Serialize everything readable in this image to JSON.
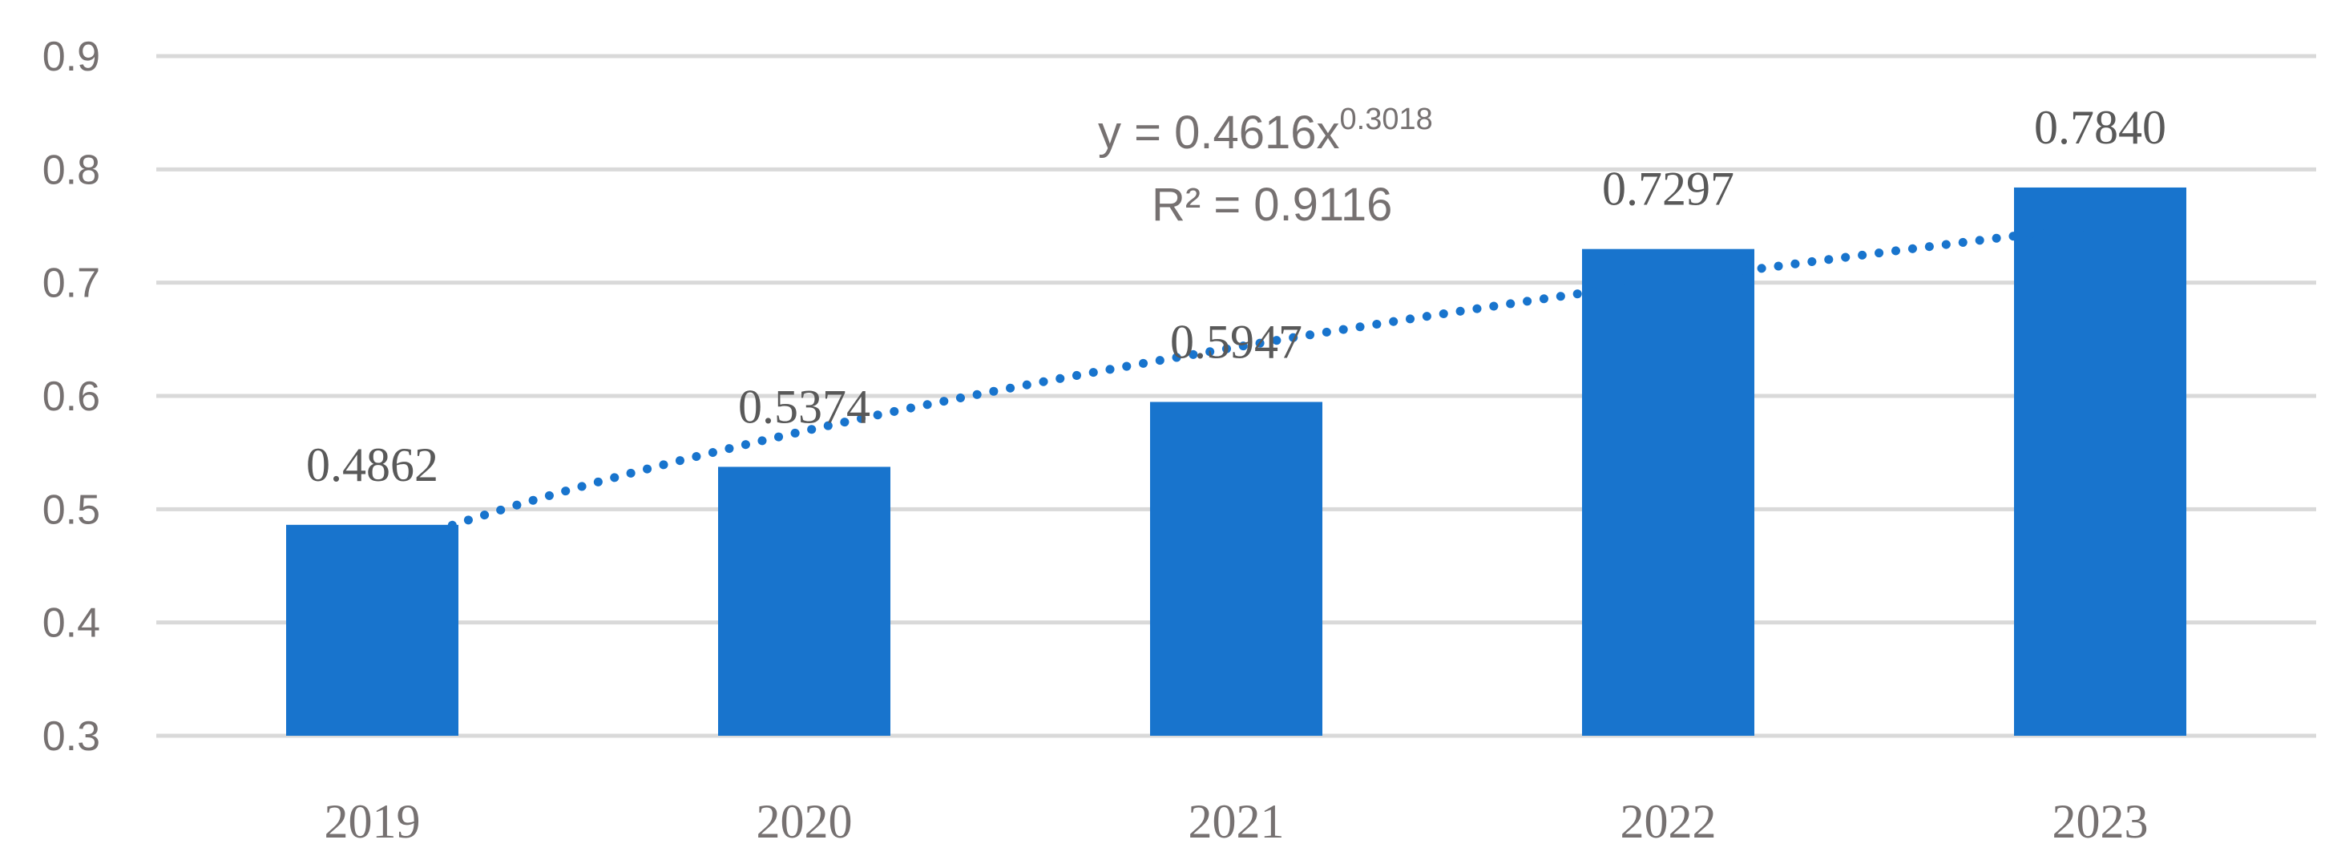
{
  "chart_data": {
    "type": "bar",
    "categories": [
      "2019",
      "2020",
      "2021",
      "2022",
      "2023"
    ],
    "values": [
      0.4862,
      0.5374,
      0.5947,
      0.7297,
      0.784
    ],
    "data_labels": [
      "0.4862",
      "0.5374",
      "0.5947",
      "0.7297",
      "0.7840"
    ],
    "ylim": [
      0.3,
      0.9
    ],
    "y_ticks": [
      "0.3",
      "0.4",
      "0.5",
      "0.6",
      "0.7",
      "0.8",
      "0.9"
    ],
    "grid": "horizontal",
    "bar_color": "#1874CD",
    "trendline": {
      "type": "power",
      "a": 0.4616,
      "b": 0.3018,
      "style": "dotted",
      "color": "#1874CD",
      "equation_prefix": "y = 0.4616x",
      "equation_exponent": "0.3018",
      "r2_label": "R² = 0.9116"
    }
  }
}
